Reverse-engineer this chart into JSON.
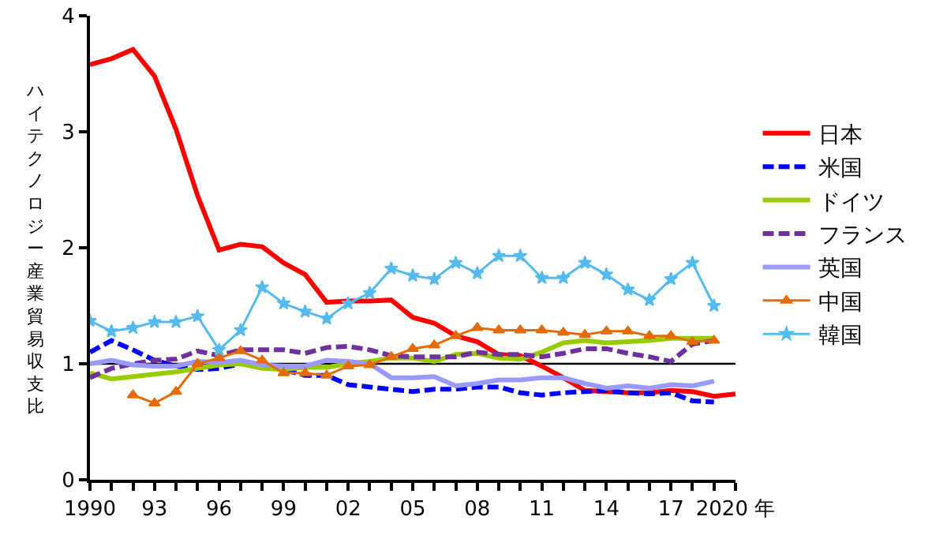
{
  "chart_data": {
    "type": "line",
    "ylabel": "ハイテクノロジー産業貿易収支比",
    "x": [
      1990,
      1991,
      1992,
      1993,
      1994,
      1995,
      1996,
      1997,
      1998,
      1999,
      2000,
      2001,
      2002,
      2003,
      2004,
      2005,
      2006,
      2007,
      2008,
      2009,
      2010,
      2011,
      2012,
      2013,
      2014,
      2015,
      2016,
      2017,
      2018,
      2019,
      2020
    ],
    "series": [
      {
        "name": "日本",
        "color": "#ff0000",
        "line_style": "solid",
        "values": [
          3.58,
          3.63,
          3.71,
          3.48,
          3.02,
          2.45,
          1.98,
          2.03,
          2.01,
          1.87,
          1.77,
          1.53,
          1.54,
          1.54,
          1.55,
          1.4,
          1.35,
          1.24,
          1.19,
          1.08,
          1.07,
          0.98,
          0.88,
          0.77,
          0.76,
          0.75,
          0.75,
          0.77,
          0.76,
          0.72,
          0.74
        ]
      },
      {
        "name": "米国",
        "color": "#0000ff",
        "line_style": "dashed",
        "values": [
          1.1,
          1.2,
          1.12,
          1.03,
          0.98,
          0.95,
          0.96,
          1.0,
          1.0,
          0.95,
          0.9,
          0.9,
          0.82,
          0.8,
          0.78,
          0.76,
          0.78,
          0.78,
          0.8,
          0.8,
          0.75,
          0.73,
          0.75,
          0.76,
          0.77,
          0.75,
          0.74,
          0.75,
          0.68,
          0.67,
          null
        ]
      },
      {
        "name": "ドイツ",
        "color": "#99cc00",
        "line_style": "solid",
        "values": [
          0.92,
          0.87,
          0.89,
          0.91,
          0.93,
          0.96,
          0.99,
          1.0,
          0.96,
          0.95,
          0.97,
          0.97,
          1.0,
          1.02,
          1.05,
          1.05,
          1.02,
          1.08,
          1.09,
          1.05,
          1.04,
          1.1,
          1.18,
          1.2,
          1.18,
          1.19,
          1.2,
          1.22,
          1.22,
          1.22,
          null
        ]
      },
      {
        "name": "フランス",
        "color": "#7030a0",
        "line_style": "dashed",
        "values": [
          0.88,
          0.96,
          1.0,
          1.03,
          1.04,
          1.11,
          1.07,
          1.12,
          1.12,
          1.12,
          1.09,
          1.14,
          1.15,
          1.12,
          1.07,
          1.06,
          1.06,
          1.06,
          1.1,
          1.08,
          1.08,
          1.06,
          1.09,
          1.13,
          1.13,
          1.09,
          1.06,
          1.02,
          1.17,
          1.2,
          null
        ]
      },
      {
        "name": "英国",
        "color": "#9999ff",
        "line_style": "solid",
        "values": [
          1.0,
          1.03,
          0.99,
          0.98,
          0.98,
          1.02,
          1.01,
          1.03,
          0.99,
          0.98,
          0.98,
          1.03,
          1.02,
          1.0,
          0.88,
          0.88,
          0.89,
          0.81,
          0.83,
          0.86,
          0.86,
          0.88,
          0.88,
          0.83,
          0.79,
          0.81,
          0.79,
          0.82,
          0.81,
          0.85,
          null
        ]
      },
      {
        "name": "中国",
        "color": "#e36c09",
        "line_style": "solid",
        "marker": "triangle",
        "values": [
          null,
          null,
          0.73,
          0.66,
          0.76,
          1.0,
          1.05,
          1.11,
          1.03,
          0.92,
          0.92,
          0.9,
          0.98,
          0.99,
          1.06,
          1.13,
          1.16,
          1.24,
          1.31,
          1.29,
          1.29,
          1.29,
          1.27,
          1.25,
          1.28,
          1.28,
          1.24,
          1.24,
          1.19,
          1.2,
          null
        ]
      },
      {
        "name": "韓国",
        "color": "#55bbee",
        "line_style": "solid",
        "marker": "star",
        "values": [
          1.37,
          1.28,
          1.31,
          1.36,
          1.36,
          1.41,
          1.12,
          1.29,
          1.66,
          1.52,
          1.45,
          1.39,
          1.52,
          1.61,
          1.82,
          1.76,
          1.73,
          1.87,
          1.78,
          1.93,
          1.93,
          1.74,
          1.74,
          1.87,
          1.77,
          1.64,
          1.55,
          1.73,
          1.87,
          1.5,
          null
        ]
      }
    ],
    "ref_lines": [
      {
        "axis": "y",
        "value": 1,
        "color": "#000000",
        "line_style": "solid"
      }
    ],
    "xlim": [
      1990,
      2020
    ],
    "xticks": [
      1990,
      {
        "value": 1991,
        "label": null
      },
      {
        "value": 1992,
        "label": null
      },
      {
        "value": 1993,
        "label": "93"
      },
      {
        "value": 1994,
        "label": null
      },
      {
        "value": 1995,
        "label": null
      },
      {
        "value": 1996,
        "label": "96"
      },
      {
        "value": 1997,
        "label": null
      },
      {
        "value": 1998,
        "label": null
      },
      {
        "value": 1999,
        "label": "99"
      },
      {
        "value": 2000,
        "label": null
      },
      {
        "value": 2001,
        "label": null
      },
      {
        "value": 2002,
        "label": "02"
      },
      {
        "value": 2003,
        "label": null
      },
      {
        "value": 2004,
        "label": null
      },
      {
        "value": 2005,
        "label": "05"
      },
      {
        "value": 2006,
        "label": null
      },
      {
        "value": 2007,
        "label": null
      },
      {
        "value": 2008,
        "label": "08"
      },
      {
        "value": 2009,
        "label": null
      },
      {
        "value": 2010,
        "label": null
      },
      {
        "value": 2011,
        "label": "11"
      },
      {
        "value": 2012,
        "label": null
      },
      {
        "value": 2013,
        "label": null
      },
      {
        "value": 2014,
        "label": "14"
      },
      {
        "value": 2015,
        "label": null
      },
      {
        "value": 2016,
        "label": null
      },
      {
        "value": 2017,
        "label": "17"
      },
      {
        "value": 2018,
        "label": null
      },
      {
        "value": 2019,
        "label": null
      },
      {
        "value": 2020,
        "label": "2020 年"
      }
    ],
    "ylim": [
      0,
      4
    ],
    "yticks": [
      0,
      1,
      2,
      3,
      4
    ],
    "grid": false,
    "legend": "right"
  }
}
